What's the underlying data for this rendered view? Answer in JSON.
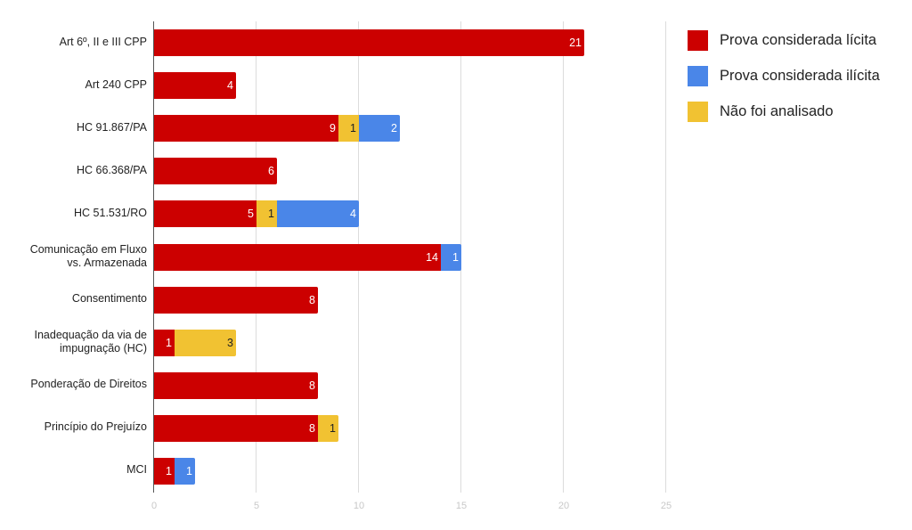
{
  "chart_data": {
    "type": "bar",
    "orientation": "horizontal",
    "stacked": true,
    "title": "",
    "xlabel": "",
    "ylabel": "",
    "xlim": [
      0,
      25
    ],
    "x_ticks": [
      0,
      5,
      10,
      15,
      20,
      25
    ],
    "grid": true,
    "legend_position": "right",
    "categories": [
      "Art 6º, II e III CPP",
      "Art 240 CPP",
      "HC 91.867/PA",
      "HC 66.368/PA",
      "HC 51.531/RO",
      "Comunicação em Fluxo vs. Armazenada",
      "Consentimento",
      "Inadequação da via de impugnação (HC)",
      "Ponderação de Direitos",
      "Princípio do Prejuízo",
      "MCI"
    ],
    "category_lines": [
      [
        "Art 6º, II e III CPP"
      ],
      [
        "Art 240 CPP"
      ],
      [
        "HC 91.867/PA"
      ],
      [
        "HC 66.368/PA"
      ],
      [
        "HC 51.531/RO"
      ],
      [
        "Comunicação em Fluxo",
        "vs. Armazenada"
      ],
      [
        "Consentimento"
      ],
      [
        "Inadequação da via de",
        "impugnação (HC)"
      ],
      [
        "Ponderação de Direitos"
      ],
      [
        "Princípio do Prejuízo"
      ],
      [
        "MCI"
      ]
    ],
    "series": [
      {
        "name": "Prova considerada lícita",
        "color": "#cc0000",
        "label_color": "#ffffff",
        "values": [
          21,
          4,
          9,
          6,
          5,
          14,
          8,
          1,
          8,
          8,
          1
        ]
      },
      {
        "name": "Não foi analisado",
        "color": "#f1c232",
        "label_color": "#222222",
        "values": [
          0,
          0,
          1,
          0,
          1,
          0,
          0,
          3,
          0,
          1,
          0
        ]
      },
      {
        "name": "Prova considerada ilícita",
        "color": "#4a86e8",
        "label_color": "#ffffff",
        "values": [
          0,
          0,
          2,
          0,
          4,
          1,
          0,
          0,
          0,
          0,
          1
        ]
      }
    ],
    "legend": [
      {
        "name": "Prova considerada lícita",
        "color": "#cc0000"
      },
      {
        "name": "Prova considerada ilícita",
        "color": "#4a86e8"
      },
      {
        "name": "Não foi analisado",
        "color": "#f1c232"
      }
    ]
  }
}
